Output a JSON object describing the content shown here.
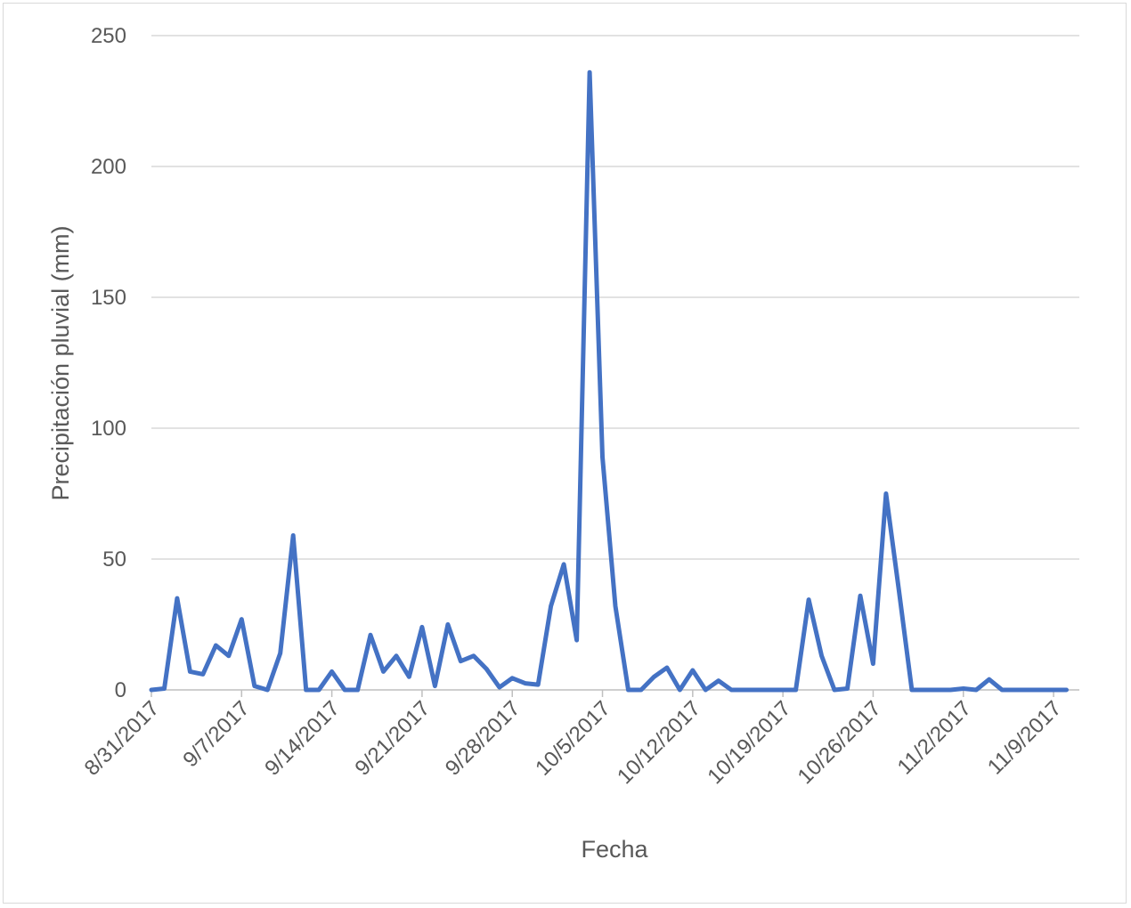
{
  "chart_data": {
    "type": "line",
    "title": "",
    "xlabel": "Fecha",
    "ylabel": "Precipitación pluvial (mm)",
    "ylim": [
      0,
      250
    ],
    "yticks": [
      0,
      50,
      100,
      150,
      200,
      250
    ],
    "xlim": [
      "2017-08-31",
      "2017-11-11"
    ],
    "xtick_labels": [
      {
        "date": "2017-08-31",
        "label": "8/31/2017"
      },
      {
        "date": "2017-09-07",
        "label": "9/7/2017"
      },
      {
        "date": "2017-09-14",
        "label": "9/14/2017"
      },
      {
        "date": "2017-09-21",
        "label": "9/21/2017"
      },
      {
        "date": "2017-09-28",
        "label": "9/28/2017"
      },
      {
        "date": "2017-10-05",
        "label": "10/5/2017"
      },
      {
        "date": "2017-10-12",
        "label": "10/12/2017"
      },
      {
        "date": "2017-10-19",
        "label": "10/19/2017"
      },
      {
        "date": "2017-10-26",
        "label": "10/26/2017"
      },
      {
        "date": "2017-11-02",
        "label": "11/2/2017"
      },
      {
        "date": "2017-11-09",
        "label": "11/9/2017"
      }
    ],
    "grid": true,
    "legend": "none",
    "series": [
      {
        "color": "#4472c4",
        "x": [
          "2017-08-31",
          "2017-09-01",
          "2017-09-02",
          "2017-09-03",
          "2017-09-04",
          "2017-09-05",
          "2017-09-06",
          "2017-09-07",
          "2017-09-08",
          "2017-09-09",
          "2017-09-10",
          "2017-09-11",
          "2017-09-12",
          "2017-09-13",
          "2017-09-14",
          "2017-09-15",
          "2017-09-16",
          "2017-09-17",
          "2017-09-18",
          "2017-09-19",
          "2017-09-20",
          "2017-09-21",
          "2017-09-22",
          "2017-09-23",
          "2017-09-24",
          "2017-09-25",
          "2017-09-26",
          "2017-09-27",
          "2017-09-28",
          "2017-09-29",
          "2017-09-30",
          "2017-10-01",
          "2017-10-02",
          "2017-10-03",
          "2017-10-04",
          "2017-10-05",
          "2017-10-06",
          "2017-10-07",
          "2017-10-08",
          "2017-10-09",
          "2017-10-10",
          "2017-10-11",
          "2017-10-12",
          "2017-10-13",
          "2017-10-14",
          "2017-10-15",
          "2017-10-16",
          "2017-10-17",
          "2017-10-18",
          "2017-10-19",
          "2017-10-20",
          "2017-10-21",
          "2017-10-22",
          "2017-10-23",
          "2017-10-24",
          "2017-10-25",
          "2017-10-26",
          "2017-10-27",
          "2017-10-28",
          "2017-10-29",
          "2017-10-30",
          "2017-10-31",
          "2017-11-01",
          "2017-11-02",
          "2017-11-03",
          "2017-11-04",
          "2017-11-05",
          "2017-11-06",
          "2017-11-07",
          "2017-11-08",
          "2017-11-09",
          "2017-11-10"
        ],
        "values": [
          0,
          0.5,
          35,
          7,
          6,
          17,
          13,
          27,
          1.5,
          0,
          14,
          59,
          0,
          0,
          7,
          0,
          0,
          21,
          7,
          13,
          5,
          24,
          1.5,
          25,
          11,
          13,
          8,
          1,
          4.5,
          2.5,
          2,
          32,
          48,
          19,
          236,
          89,
          32,
          0,
          0,
          5,
          8.5,
          0,
          7.5,
          0,
          3.5,
          0,
          0,
          0,
          0,
          0,
          0,
          34.5,
          13,
          0,
          0.5,
          36,
          10,
          75,
          38,
          0,
          0,
          0,
          0,
          0.5,
          0,
          4,
          0,
          0,
          0,
          0,
          0,
          0
        ]
      }
    ]
  }
}
